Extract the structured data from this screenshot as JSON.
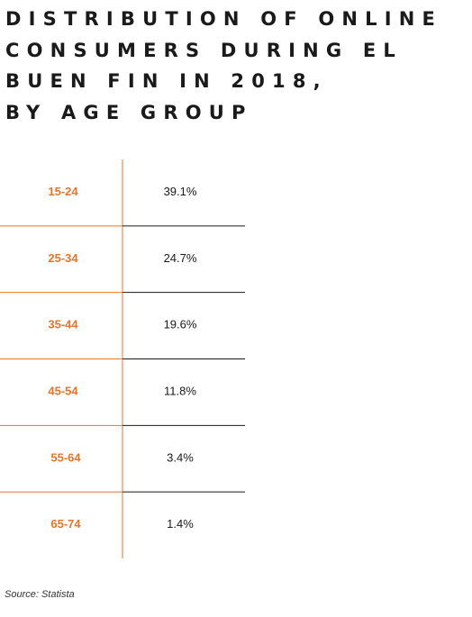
{
  "title_lines": [
    "DISTRIBUTION OF ONLINE",
    "CONSUMERS DURING EL",
    "BUEN FIN IN 2018,",
    "BY AGE GROUP"
  ],
  "source": "Source: Statista",
  "colors": {
    "accent": "#e8742a",
    "text": "#1a1a1a",
    "divider": "#1a1a1a"
  },
  "chart_data": {
    "type": "table",
    "title": "DISTRIBUTION OF ONLINE CONSUMERS DURING EL BUEN FIN IN 2018, BY AGE GROUP",
    "categories": [
      "15-24",
      "25-34",
      "35-44",
      "45-54",
      "55-64",
      "65-74"
    ],
    "values": [
      39.1,
      24.7,
      19.6,
      11.8,
      3.4,
      1.4
    ],
    "value_labels": [
      "39.1%",
      "24.7%",
      "19.6%",
      "11.8%",
      "3.4%",
      "1.4%"
    ],
    "unit": "%"
  }
}
